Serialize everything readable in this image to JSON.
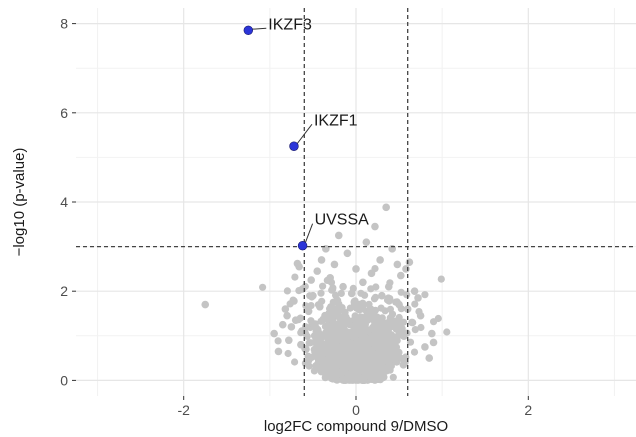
{
  "chart_data": {
    "type": "scatter",
    "title": "",
    "xlabel": "log2FC compound 9/DMSO",
    "ylabel": "−log10 (p-value)",
    "xlim": [
      -3.25,
      3.25
    ],
    "ylim": [
      -0.35,
      8.35
    ],
    "x_ticks": [
      -2,
      0,
      2
    ],
    "x_tick_labels": [
      "-2",
      "0",
      "2"
    ],
    "y_ticks": [
      0,
      2,
      4,
      6,
      8
    ],
    "y_tick_labels": [
      "0",
      "2",
      "4",
      "6",
      "8"
    ],
    "grid": true,
    "legend": "none",
    "thresholds": {
      "x": [
        -0.6,
        0.6
      ],
      "y": 3.0
    },
    "colors": {
      "background_points": "#c4c4c4",
      "highlight_points": "#2b35d8",
      "threshold_line": "#444444",
      "grid_major": "#e6e6e6",
      "grid_minor": "#f2f2f2"
    },
    "highlighted": [
      {
        "label": "IKZF3",
        "x": -1.25,
        "y": 7.85
      },
      {
        "label": "IKZF1",
        "x": -0.72,
        "y": 5.25
      },
      {
        "label": "UVSSA",
        "x": -0.62,
        "y": 3.02
      }
    ],
    "background_points": [
      {
        "x": -1.75,
        "y": 1.7
      },
      {
        "x": -0.85,
        "y": 1.25
      },
      {
        "x": -0.82,
        "y": 1.6
      },
      {
        "x": -0.8,
        "y": 1.45
      },
      {
        "x": -0.78,
        "y": 0.9
      },
      {
        "x": -0.75,
        "y": 1.2
      },
      {
        "x": -0.72,
        "y": 1.78
      },
      {
        "x": -0.7,
        "y": 1.35
      },
      {
        "x": -0.68,
        "y": 2.62
      },
      {
        "x": -0.66,
        "y": 2.55
      },
      {
        "x": -0.64,
        "y": 0.8
      },
      {
        "x": -0.62,
        "y": 2.05
      },
      {
        "x": -0.6,
        "y": 1.1
      },
      {
        "x": -0.58,
        "y": 0.7
      },
      {
        "x": -0.55,
        "y": 1.55
      },
      {
        "x": -0.52,
        "y": 2.25
      },
      {
        "x": -0.5,
        "y": 1.9
      },
      {
        "x": -0.48,
        "y": 1.0
      },
      {
        "x": -0.45,
        "y": 2.45
      },
      {
        "x": -0.42,
        "y": 1.65
      },
      {
        "x": -0.4,
        "y": 2.7
      },
      {
        "x": -0.38,
        "y": 0.6
      },
      {
        "x": -0.35,
        "y": 2.95
      },
      {
        "x": -0.32,
        "y": 1.4
      },
      {
        "x": -0.3,
        "y": 2.3
      },
      {
        "x": -0.28,
        "y": 0.9
      },
      {
        "x": -0.25,
        "y": 2.6
      },
      {
        "x": -0.22,
        "y": 1.8
      },
      {
        "x": -0.2,
        "y": 3.25
      },
      {
        "x": -0.18,
        "y": 0.5
      },
      {
        "x": -0.15,
        "y": 2.1
      },
      {
        "x": -0.12,
        "y": 1.3
      },
      {
        "x": -0.1,
        "y": 2.85
      },
      {
        "x": -0.08,
        "y": 0.4
      },
      {
        "x": -0.05,
        "y": 1.95
      },
      {
        "x": -0.02,
        "y": 1.15
      },
      {
        "x": 0.0,
        "y": 2.5
      },
      {
        "x": 0.02,
        "y": 0.3
      },
      {
        "x": 0.05,
        "y": 1.7
      },
      {
        "x": 0.08,
        "y": 2.2
      },
      {
        "x": 0.1,
        "y": 0.8
      },
      {
        "x": 0.12,
        "y": 3.1
      },
      {
        "x": 0.15,
        "y": 1.5
      },
      {
        "x": 0.18,
        "y": 2.4
      },
      {
        "x": 0.2,
        "y": 0.6
      },
      {
        "x": 0.22,
        "y": 3.45
      },
      {
        "x": 0.25,
        "y": 1.25
      },
      {
        "x": 0.28,
        "y": 2.7
      },
      {
        "x": 0.3,
        "y": 1.9
      },
      {
        "x": 0.32,
        "y": 0.9
      },
      {
        "x": 0.35,
        "y": 3.88
      },
      {
        "x": 0.38,
        "y": 2.1
      },
      {
        "x": 0.4,
        "y": 1.4
      },
      {
        "x": 0.42,
        "y": 2.95
      },
      {
        "x": 0.45,
        "y": 0.7
      },
      {
        "x": 0.48,
        "y": 2.6
      },
      {
        "x": 0.5,
        "y": 1.7
      },
      {
        "x": 0.52,
        "y": 2.35
      },
      {
        "x": 0.55,
        "y": 1.05
      },
      {
        "x": 0.58,
        "y": 2.5
      },
      {
        "x": 0.6,
        "y": 1.6
      },
      {
        "x": 0.62,
        "y": 2.65
      },
      {
        "x": 0.65,
        "y": 1.3
      },
      {
        "x": 0.68,
        "y": 2.0
      },
      {
        "x": 0.72,
        "y": 1.85
      },
      {
        "x": 0.75,
        "y": 1.45
      },
      {
        "x": 0.8,
        "y": 0.75
      },
      {
        "x": 0.85,
        "y": 0.5
      },
      {
        "x": 0.88,
        "y": 1.05
      },
      {
        "x": -0.9,
        "y": 0.65
      },
      {
        "x": -0.95,
        "y": 1.05
      },
      {
        "x": 0.9,
        "y": 0.85
      },
      {
        "x": -0.55,
        "y": 0.45
      },
      {
        "x": 0.55,
        "y": 0.35
      },
      {
        "x": -0.3,
        "y": 0.15
      },
      {
        "x": 0.3,
        "y": 0.2
      },
      {
        "x": -0.1,
        "y": 0.05
      },
      {
        "x": 0.1,
        "y": 0.08
      }
    ]
  }
}
